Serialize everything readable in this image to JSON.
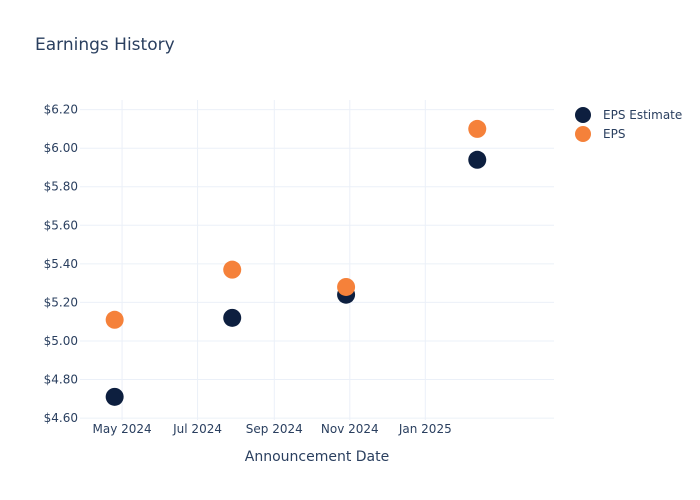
{
  "chart_data": {
    "type": "scatter",
    "title": "Earnings History",
    "xlabel": "Announcement Date",
    "ylabel": "",
    "grid": true,
    "legend_position": "right",
    "x_axis": {
      "type": "date",
      "range": [
        "2024-03-28",
        "2025-04-15"
      ],
      "ticks": [
        {
          "value": "2024-05-01",
          "label": "May 2024"
        },
        {
          "value": "2024-07-01",
          "label": "Jul 2024"
        },
        {
          "value": "2024-09-01",
          "label": "Sep 2024"
        },
        {
          "value": "2024-11-01",
          "label": "Nov 2024"
        },
        {
          "value": "2025-01-01",
          "label": "Jan 2025"
        }
      ]
    },
    "y_axis": {
      "range": [
        4.59,
        6.25
      ],
      "ticks": [
        {
          "value": 4.6,
          "label": "$4.60"
        },
        {
          "value": 4.8,
          "label": "$4.80"
        },
        {
          "value": 5.0,
          "label": "$5.00"
        },
        {
          "value": 5.2,
          "label": "$5.20"
        },
        {
          "value": 5.4,
          "label": "$5.40"
        },
        {
          "value": 5.6,
          "label": "$5.60"
        },
        {
          "value": 5.8,
          "label": "$5.80"
        },
        {
          "value": 6.0,
          "label": "$6.00"
        },
        {
          "value": 6.2,
          "label": "$6.20"
        }
      ]
    },
    "series": [
      {
        "name": "EPS Estimate",
        "color": "#0d1f3f",
        "points": [
          {
            "x": "2024-04-25",
            "y": 4.71
          },
          {
            "x": "2024-07-29",
            "y": 5.12
          },
          {
            "x": "2024-10-29",
            "y": 5.24
          },
          {
            "x": "2025-02-12",
            "y": 5.94
          }
        ]
      },
      {
        "name": "EPS",
        "color": "#f5813a",
        "points": [
          {
            "x": "2024-04-25",
            "y": 5.11
          },
          {
            "x": "2024-07-29",
            "y": 5.37
          },
          {
            "x": "2024-10-29",
            "y": 5.28
          },
          {
            "x": "2025-02-12",
            "y": 6.1
          }
        ]
      }
    ]
  }
}
